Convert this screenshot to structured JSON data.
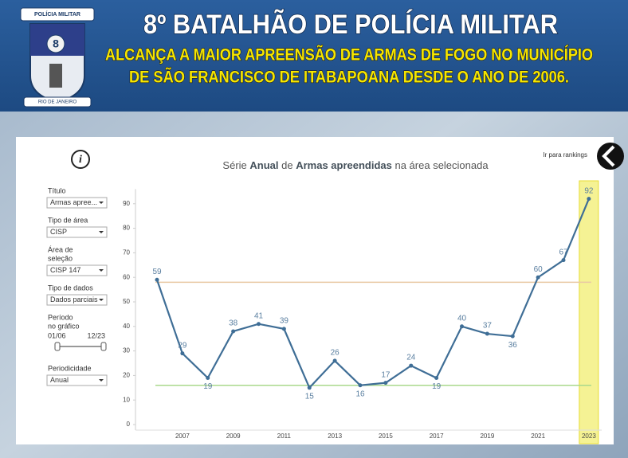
{
  "header": {
    "title": "8º BATALHÃO DE POLÍCIA MILITAR",
    "subtitle_lines": [
      "ALCANÇA A MAIOR APREENSÃO DE ARMAS DE FOGO NO MUNICÍPIO",
      "DE  SÃO FRANCISCO DE ITABAPOANA DESDE O ANO DE 2006."
    ],
    "logo_top": "POLÍCIA MILITAR",
    "logo_number": "8",
    "logo_bottom": "RIO DE JANEIRO"
  },
  "link": "Ir para rankings",
  "info": "i",
  "sidebar": [
    {
      "label": [
        "Título"
      ],
      "value": "Armas apree..."
    },
    {
      "label": [
        "Tipo de área"
      ],
      "value": "CISP"
    },
    {
      "label": [
        "Área de",
        "seleção"
      ],
      "value": "CISP 147"
    },
    {
      "label": [
        "Tipo de dados"
      ],
      "value": "Dados parciais"
    },
    {
      "label": [
        "Período",
        "no gráfico"
      ],
      "range": [
        "01/06",
        "12/23"
      ]
    },
    {
      "label": [
        "Periodicidade"
      ],
      "value": "Anual"
    }
  ],
  "chart_data": {
    "type": "line",
    "title_parts": [
      {
        "text": "Série ",
        "bold": false
      },
      {
        "text": "Anual",
        "bold": true
      },
      {
        "text": " de ",
        "bold": false
      },
      {
        "text": "Armas apreendidas",
        "bold": true
      },
      {
        "text": " na área selecionada",
        "bold": false
      }
    ],
    "categories": [
      null,
      "2007",
      null,
      "2009",
      null,
      "2011",
      null,
      "2013",
      null,
      "2015",
      null,
      "2017",
      null,
      "2019",
      null,
      "2021",
      null,
      "2023"
    ],
    "series": [
      {
        "name": "Armas apreendidas",
        "color": "#3f6e96",
        "values": [
          59,
          29,
          19,
          38,
          41,
          39,
          15,
          26,
          16,
          17,
          24,
          19,
          40,
          37,
          36,
          60,
          67,
          92
        ]
      }
    ],
    "highlight_index": 17,
    "highlight_color": "#f3ef7a",
    "reference_lines": [
      {
        "value": 58,
        "color": "#e9c9a4"
      },
      {
        "value": 16,
        "color": "#a9d98c"
      }
    ],
    "ylim": [
      0,
      96
    ],
    "yticks": [
      0,
      10,
      20,
      30,
      40,
      50,
      60,
      70,
      80,
      90
    ]
  }
}
